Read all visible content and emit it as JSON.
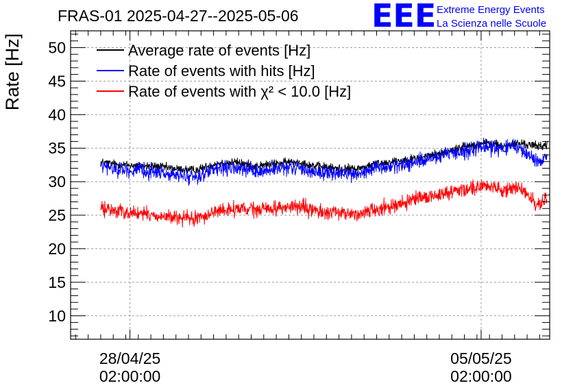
{
  "chart_data": {
    "type": "line",
    "title": "FRAS-01 2025-04-27--2025-05-06",
    "xlabel": "",
    "ylabel": "Rate [Hz]",
    "ylim": [
      6.5,
      52.5
    ],
    "yticks": [
      10,
      15,
      20,
      25,
      30,
      35,
      40,
      45,
      50
    ],
    "x_unit": "days since 2025-04-27 00:00",
    "xlim": [
      -0.1,
      9.45
    ],
    "xticks": [
      {
        "x": 1.083,
        "date": "28/04/25",
        "time": "02:00:00"
      },
      {
        "x": 8.083,
        "date": "05/05/25",
        "time": "02:00:00"
      }
    ],
    "grid": true,
    "legend_position": "top-left",
    "series": [
      {
        "name": "Average rate of events [Hz]",
        "color": "#000000",
        "noise": 0.6,
        "x": [
          0.5,
          0.8,
          1.2,
          1.6,
          2.0,
          2.4,
          2.8,
          3.2,
          3.6,
          4.0,
          4.4,
          4.8,
          5.2,
          5.6,
          6.0,
          6.4,
          6.8,
          7.2,
          7.6,
          7.9,
          8.2,
          8.5,
          8.8,
          9.0,
          9.2,
          9.4
        ],
        "values": [
          32.9,
          32.6,
          32.4,
          32.3,
          31.9,
          31.7,
          32.7,
          32.9,
          32.3,
          32.7,
          33.0,
          32.3,
          32.0,
          31.9,
          32.7,
          33.1,
          33.5,
          34.1,
          34.9,
          35.5,
          35.8,
          35.3,
          35.7,
          35.6,
          35.3,
          35.5
        ]
      },
      {
        "name": "Rate of events with hits [Hz]",
        "color": "#0000ff",
        "noise": 1.0,
        "x": [
          0.5,
          0.8,
          1.2,
          1.6,
          2.0,
          2.4,
          2.8,
          3.2,
          3.6,
          4.0,
          4.4,
          4.8,
          5.2,
          5.6,
          6.0,
          6.4,
          6.8,
          7.2,
          7.6,
          7.9,
          8.2,
          8.5,
          8.8,
          9.0,
          9.2,
          9.4
        ],
        "values": [
          32.3,
          31.9,
          31.6,
          31.5,
          30.9,
          30.7,
          31.8,
          32.0,
          31.5,
          31.8,
          32.1,
          31.4,
          31.2,
          31.1,
          31.9,
          32.4,
          32.9,
          33.6,
          34.3,
          34.9,
          35.3,
          34.9,
          35.2,
          34.2,
          33.0,
          33.5
        ]
      },
      {
        "name": "Rate of events with χ² < 10.0 [Hz]",
        "color": "#ff0000",
        "noise": 1.0,
        "x": [
          0.5,
          0.8,
          1.2,
          1.6,
          2.0,
          2.4,
          2.8,
          3.2,
          3.6,
          4.0,
          4.4,
          4.8,
          5.2,
          5.6,
          6.0,
          6.4,
          6.8,
          7.2,
          7.6,
          7.9,
          8.2,
          8.5,
          8.8,
          9.0,
          9.2,
          9.4
        ],
        "values": [
          26.0,
          25.7,
          25.3,
          24.9,
          24.6,
          24.4,
          25.6,
          25.9,
          25.8,
          26.1,
          26.3,
          25.6,
          25.3,
          25.2,
          25.9,
          26.6,
          27.3,
          28.0,
          28.7,
          29.2,
          29.3,
          28.9,
          29.1,
          28.0,
          26.5,
          27.4
        ]
      }
    ]
  },
  "logo": {
    "letters": "EEE",
    "line1": "Extreme Energy Events",
    "line2": "La Scienza nelle Scuole",
    "color": "#0000ff"
  }
}
